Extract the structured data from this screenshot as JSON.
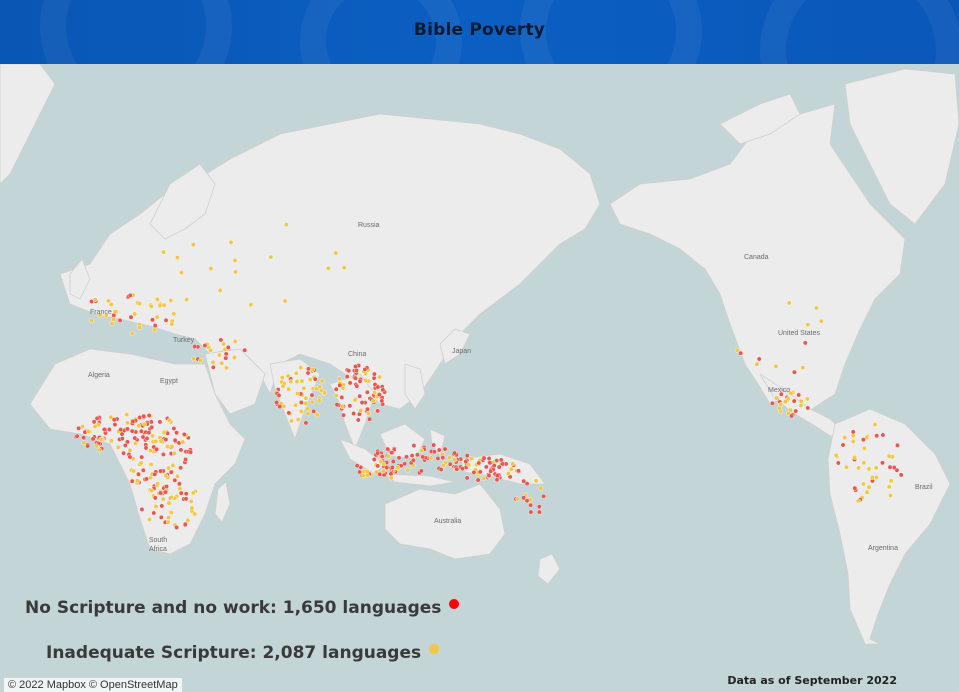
{
  "header": {
    "title": "Bible Poverty"
  },
  "legend": {
    "no_scripture": {
      "label": "No Scripture and no work: 1,650 languages",
      "color": "#e8574f"
    },
    "inadequate": {
      "label": "Inadequate Scripture: 2,087 languages",
      "color": "#f2c744"
    }
  },
  "footer": {
    "attribution": "© 2022 Mapbox © OpenStreetMap",
    "data_note": "Data as of September 2022"
  },
  "map": {
    "labels": {
      "russia": "Russia",
      "canada": "Canada",
      "united_states": "United States",
      "china": "China",
      "japan": "Japan",
      "turkey": "Turkey",
      "france": "France",
      "algeria": "Algeria",
      "egypt": "Egypt",
      "south_africa": "South Africa",
      "australia": "Australia",
      "mexico": "Mexico",
      "brazil": "Brazil",
      "argentina": "Argentina"
    },
    "colors": {
      "water": "#c3d5d6",
      "land": "#ececec",
      "border": "#c9c9c9"
    }
  }
}
